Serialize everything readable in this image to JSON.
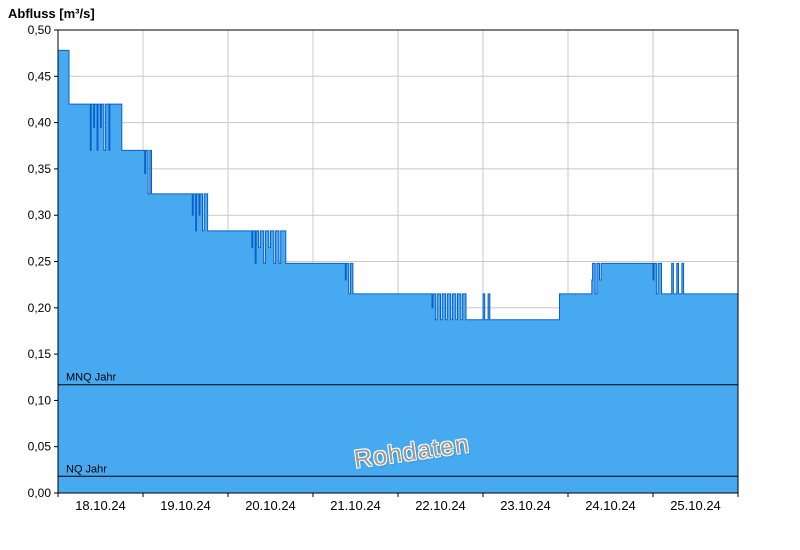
{
  "title": "Abfluss [m³/s]",
  "watermark": "Rohdaten",
  "chart_data": {
    "type": "area",
    "step": true,
    "title": "Abfluss [m³/s]",
    "watermark": "Rohdaten",
    "x_labels": [
      "18.10.24",
      "19.10.24",
      "20.10.24",
      "21.10.24",
      "22.10.24",
      "23.10.24",
      "24.10.24",
      "25.10.24"
    ],
    "x_range_days": [
      0,
      8
    ],
    "ylim": [
      0,
      0.5
    ],
    "y_ticks": [
      0,
      0.05,
      0.1,
      0.15,
      0.2,
      0.25,
      0.3,
      0.35,
      0.4,
      0.45,
      0.5
    ],
    "y_tick_labels": [
      "0,00",
      "0,05",
      "0,10",
      "0,15",
      "0,20",
      "0,25",
      "0,30",
      "0,35",
      "0,40",
      "0,45",
      "0,50"
    ],
    "grid": true,
    "legend": "none",
    "reference_lines": [
      {
        "label": "MNQ Jahr",
        "value": 0.117
      },
      {
        "label": "NQ Jahr",
        "value": 0.018
      }
    ],
    "colors": {
      "fill": "#47A9F0",
      "line": "#0A60C8",
      "grid": "#C8C8C8",
      "reference": "#000000",
      "axis": "#000000",
      "watermark": "#9A9A9A"
    },
    "series": [
      {
        "name": "Abfluss Rohdaten",
        "unit": "m³/s",
        "points": [
          [
            0,
            0.478
          ],
          [
            0.13,
            0.42
          ],
          [
            0.38,
            0.37
          ],
          [
            0.39,
            0.42
          ],
          [
            0.42,
            0.395
          ],
          [
            0.43,
            0.42
          ],
          [
            0.46,
            0.37
          ],
          [
            0.47,
            0.42
          ],
          [
            0.5,
            0.395
          ],
          [
            0.51,
            0.42
          ],
          [
            0.54,
            0.37
          ],
          [
            0.56,
            0.42
          ],
          [
            0.6,
            0.37
          ],
          [
            0.61,
            0.42
          ],
          [
            0.75,
            0.37
          ],
          [
            1.02,
            0.345
          ],
          [
            1.03,
            0.37
          ],
          [
            1.06,
            0.323
          ],
          [
            1.08,
            0.37
          ],
          [
            1.1,
            0.323
          ],
          [
            1.58,
            0.3
          ],
          [
            1.59,
            0.323
          ],
          [
            1.62,
            0.283
          ],
          [
            1.63,
            0.323
          ],
          [
            1.66,
            0.3
          ],
          [
            1.67,
            0.323
          ],
          [
            1.7,
            0.283
          ],
          [
            1.72,
            0.323
          ],
          [
            1.76,
            0.283
          ],
          [
            2.28,
            0.265
          ],
          [
            2.29,
            0.283
          ],
          [
            2.32,
            0.248
          ],
          [
            2.33,
            0.283
          ],
          [
            2.36,
            0.265
          ],
          [
            2.38,
            0.283
          ],
          [
            2.42,
            0.248
          ],
          [
            2.44,
            0.283
          ],
          [
            2.48,
            0.265
          ],
          [
            2.5,
            0.283
          ],
          [
            2.54,
            0.248
          ],
          [
            2.56,
            0.283
          ],
          [
            2.6,
            0.248
          ],
          [
            2.62,
            0.283
          ],
          [
            2.68,
            0.248
          ],
          [
            3.38,
            0.23
          ],
          [
            3.39,
            0.248
          ],
          [
            3.42,
            0.215
          ],
          [
            3.44,
            0.248
          ],
          [
            3.47,
            0.215
          ],
          [
            4.4,
            0.2
          ],
          [
            4.41,
            0.215
          ],
          [
            4.44,
            0.187
          ],
          [
            4.46,
            0.215
          ],
          [
            4.5,
            0.187
          ],
          [
            4.52,
            0.215
          ],
          [
            4.56,
            0.187
          ],
          [
            4.58,
            0.215
          ],
          [
            4.62,
            0.187
          ],
          [
            4.64,
            0.215
          ],
          [
            4.68,
            0.187
          ],
          [
            4.7,
            0.215
          ],
          [
            4.74,
            0.187
          ],
          [
            4.76,
            0.215
          ],
          [
            4.8,
            0.187
          ],
          [
            5,
            0.215
          ],
          [
            5.02,
            0.187
          ],
          [
            5.06,
            0.215
          ],
          [
            5.08,
            0.187
          ],
          [
            5.9,
            0.215
          ],
          [
            6.28,
            0.23
          ],
          [
            6.29,
            0.248
          ],
          [
            6.32,
            0.215
          ],
          [
            6.34,
            0.248
          ],
          [
            6.37,
            0.23
          ],
          [
            6.39,
            0.248
          ],
          [
            7,
            0.23
          ],
          [
            7.01,
            0.248
          ],
          [
            7.04,
            0.215
          ],
          [
            7.06,
            0.248
          ],
          [
            7.1,
            0.215
          ],
          [
            7.22,
            0.248
          ],
          [
            7.24,
            0.215
          ],
          [
            7.28,
            0.248
          ],
          [
            7.3,
            0.215
          ],
          [
            7.34,
            0.248
          ],
          [
            7.36,
            0.215
          ],
          [
            8,
            0.215
          ]
        ]
      }
    ]
  }
}
